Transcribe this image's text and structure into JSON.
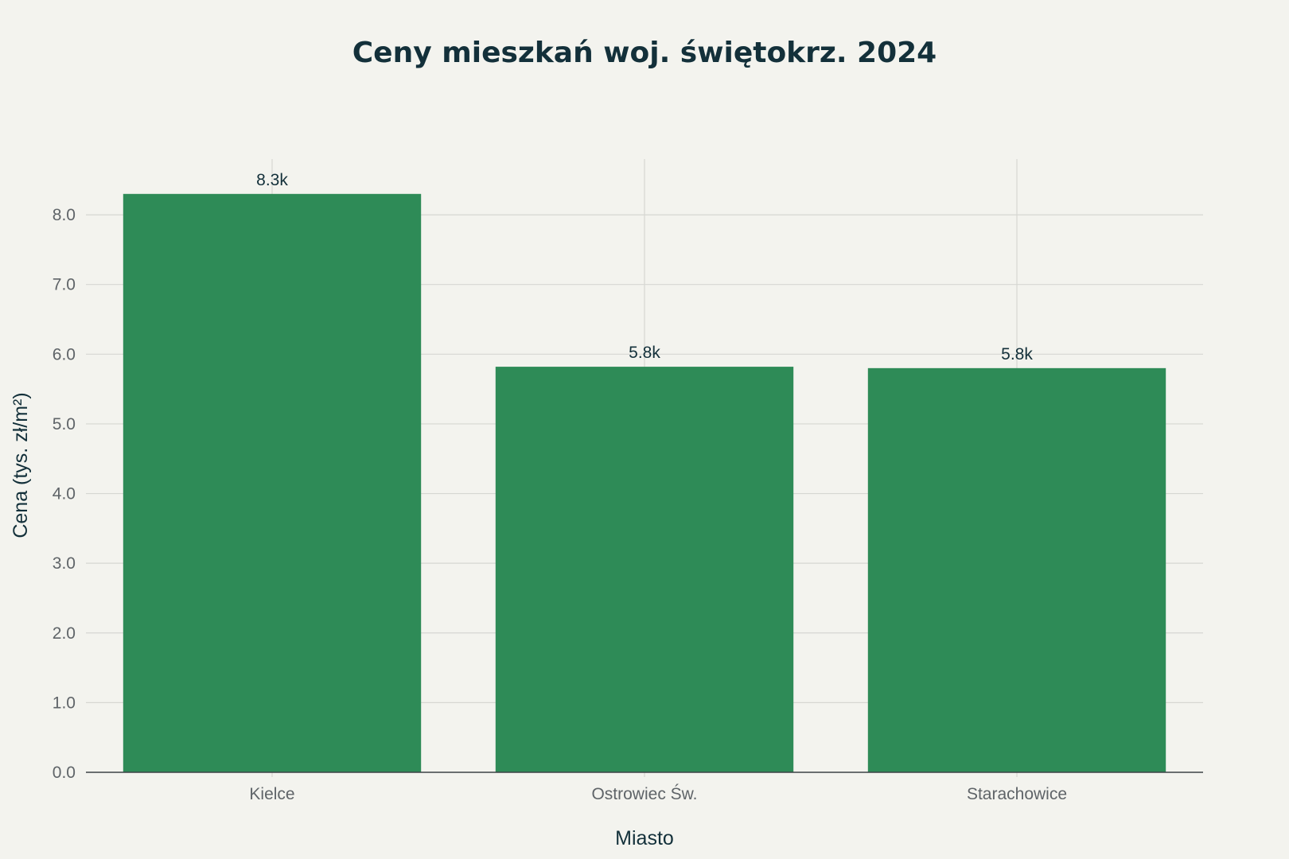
{
  "colors": {
    "background": "#f3f3ee",
    "bar": "#2e8b57",
    "grid": "#d6d7d2",
    "text": "#13303a",
    "tick": "#5f6468"
  },
  "chart_data": {
    "type": "bar",
    "title": "Ceny mieszkań woj. świętokrz. 2024",
    "xlabel": "Miasto",
    "ylabel": "Cena (tys. zł/m²)",
    "categories": [
      "Kielce",
      "Ostrowiec Św.",
      "Starachowice"
    ],
    "values": [
      8.3,
      5.82,
      5.8
    ],
    "data_labels": [
      "8.3k",
      "5.8k",
      "5.8k"
    ],
    "ylim": [
      0,
      8.8
    ],
    "yticks": [
      0,
      1,
      2,
      3,
      4,
      5,
      6,
      7,
      8
    ],
    "ytick_labels": [
      "0.0",
      "1.0",
      "2.0",
      "3.0",
      "4.0",
      "5.0",
      "6.0",
      "7.0",
      "8.0"
    ],
    "grid": true,
    "legend": "none"
  }
}
